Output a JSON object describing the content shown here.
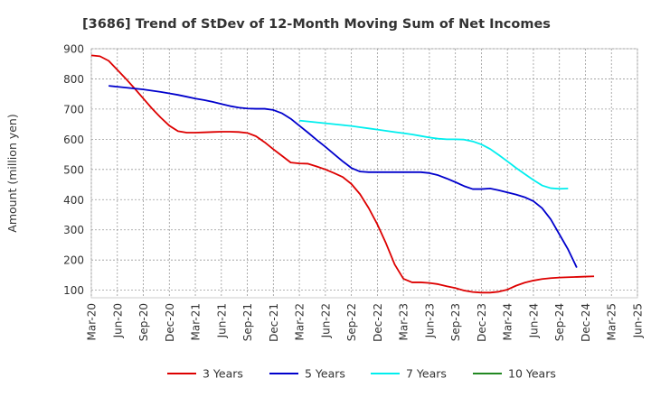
{
  "chart_data": {
    "type": "line",
    "title": "[3686]  Trend of StDev of 12-Month Moving Sum of Net Incomes",
    "ylabel": "Amount (million yen)",
    "xlabel": "",
    "ylim": [
      75,
      900
    ],
    "yticks": [
      100,
      200,
      300,
      400,
      500,
      600,
      700,
      800,
      900
    ],
    "xlim": [
      0,
      63
    ],
    "xticks": [
      {
        "label": "Mar-20",
        "x": 0
      },
      {
        "label": "Jun-20",
        "x": 3
      },
      {
        "label": "Sep-20",
        "x": 6
      },
      {
        "label": "Dec-20",
        "x": 9
      },
      {
        "label": "Mar-21",
        "x": 12
      },
      {
        "label": "Jun-21",
        "x": 15
      },
      {
        "label": "Sep-21",
        "x": 18
      },
      {
        "label": "Dec-21",
        "x": 21
      },
      {
        "label": "Mar-22",
        "x": 24
      },
      {
        "label": "Jun-22",
        "x": 27
      },
      {
        "label": "Sep-22",
        "x": 30
      },
      {
        "label": "Dec-22",
        "x": 33
      },
      {
        "label": "Mar-23",
        "x": 36
      },
      {
        "label": "Jun-23",
        "x": 39
      },
      {
        "label": "Sep-23",
        "x": 42
      },
      {
        "label": "Dec-23",
        "x": 45
      },
      {
        "label": "Mar-24",
        "x": 48
      },
      {
        "label": "Jun-24",
        "x": 51
      },
      {
        "label": "Sep-24",
        "x": 54
      },
      {
        "label": "Dec-24",
        "x": 57
      },
      {
        "label": "Mar-25",
        "x": 60
      },
      {
        "label": "Jun-25",
        "x": 63
      }
    ],
    "grid": true,
    "legend_position": "bottom",
    "series": [
      {
        "name": "3 Years",
        "color": "#dd0000",
        "points": [
          [
            0,
            878
          ],
          [
            1,
            875
          ],
          [
            2,
            860
          ],
          [
            3,
            830
          ],
          [
            4,
            800
          ],
          [
            5,
            768
          ],
          [
            6,
            735
          ],
          [
            7,
            702
          ],
          [
            8,
            672
          ],
          [
            9,
            645
          ],
          [
            10,
            627
          ],
          [
            11,
            622
          ],
          [
            12,
            622
          ],
          [
            13,
            623
          ],
          [
            14,
            624
          ],
          [
            15,
            625
          ],
          [
            16,
            625
          ],
          [
            17,
            624
          ],
          [
            18,
            621
          ],
          [
            19,
            610
          ],
          [
            20,
            590
          ],
          [
            21,
            567
          ],
          [
            22,
            545
          ],
          [
            23,
            523
          ],
          [
            24,
            520
          ],
          [
            25,
            519
          ],
          [
            26,
            510
          ],
          [
            27,
            500
          ],
          [
            28,
            488
          ],
          [
            29,
            475
          ],
          [
            30,
            452
          ],
          [
            31,
            418
          ],
          [
            32,
            372
          ],
          [
            33,
            318
          ],
          [
            34,
            255
          ],
          [
            35,
            185
          ],
          [
            36,
            138
          ],
          [
            37,
            126
          ],
          [
            38,
            126
          ],
          [
            39,
            124
          ],
          [
            40,
            120
          ],
          [
            41,
            113
          ],
          [
            42,
            107
          ],
          [
            43,
            99
          ],
          [
            44,
            94
          ],
          [
            45,
            92
          ],
          [
            46,
            92
          ],
          [
            47,
            95
          ],
          [
            48,
            102
          ],
          [
            49,
            115
          ],
          [
            50,
            125
          ],
          [
            51,
            132
          ],
          [
            52,
            137
          ],
          [
            53,
            140
          ],
          [
            54,
            142
          ],
          [
            55,
            143
          ],
          [
            56,
            144
          ],
          [
            57,
            145
          ],
          [
            58,
            146
          ]
        ]
      },
      {
        "name": "5 Years",
        "color": "#0000cc",
        "points": [
          [
            2,
            777
          ],
          [
            3,
            774
          ],
          [
            4,
            771
          ],
          [
            5,
            768
          ],
          [
            6,
            765
          ],
          [
            7,
            761
          ],
          [
            8,
            757
          ],
          [
            9,
            752
          ],
          [
            10,
            747
          ],
          [
            11,
            741
          ],
          [
            12,
            735
          ],
          [
            13,
            730
          ],
          [
            14,
            724
          ],
          [
            15,
            717
          ],
          [
            16,
            710
          ],
          [
            17,
            705
          ],
          [
            18,
            702
          ],
          [
            19,
            701
          ],
          [
            20,
            701
          ],
          [
            21,
            697
          ],
          [
            22,
            686
          ],
          [
            23,
            668
          ],
          [
            24,
            645
          ],
          [
            25,
            622
          ],
          [
            26,
            598
          ],
          [
            27,
            575
          ],
          [
            28,
            551
          ],
          [
            29,
            527
          ],
          [
            30,
            505
          ],
          [
            31,
            493
          ],
          [
            32,
            491
          ],
          [
            33,
            491
          ],
          [
            34,
            491
          ],
          [
            35,
            491
          ],
          [
            36,
            491
          ],
          [
            37,
            491
          ],
          [
            38,
            491
          ],
          [
            39,
            488
          ],
          [
            40,
            481
          ],
          [
            41,
            470
          ],
          [
            42,
            458
          ],
          [
            43,
            445
          ],
          [
            44,
            435
          ],
          [
            45,
            435
          ],
          [
            46,
            437
          ],
          [
            47,
            431
          ],
          [
            48,
            424
          ],
          [
            49,
            417
          ],
          [
            50,
            408
          ],
          [
            51,
            395
          ],
          [
            52,
            372
          ],
          [
            53,
            335
          ],
          [
            54,
            285
          ],
          [
            55,
            235
          ],
          [
            56,
            175
          ]
        ]
      },
      {
        "name": "7 Years",
        "color": "#00eeee",
        "points": [
          [
            24,
            662
          ],
          [
            25,
            659
          ],
          [
            26,
            656
          ],
          [
            27,
            653
          ],
          [
            28,
            650
          ],
          [
            29,
            647
          ],
          [
            30,
            644
          ],
          [
            31,
            640
          ],
          [
            32,
            636
          ],
          [
            33,
            632
          ],
          [
            34,
            628
          ],
          [
            35,
            624
          ],
          [
            36,
            620
          ],
          [
            37,
            616
          ],
          [
            38,
            611
          ],
          [
            39,
            606
          ],
          [
            40,
            602
          ],
          [
            41,
            600
          ],
          [
            42,
            600
          ],
          [
            43,
            599
          ],
          [
            44,
            593
          ],
          [
            45,
            583
          ],
          [
            46,
            568
          ],
          [
            47,
            548
          ],
          [
            48,
            527
          ],
          [
            49,
            505
          ],
          [
            50,
            485
          ],
          [
            51,
            465
          ],
          [
            52,
            447
          ],
          [
            53,
            438
          ],
          [
            54,
            436
          ],
          [
            55,
            437
          ]
        ]
      },
      {
        "name": "10 Years",
        "color": "#228822",
        "points": []
      }
    ]
  }
}
